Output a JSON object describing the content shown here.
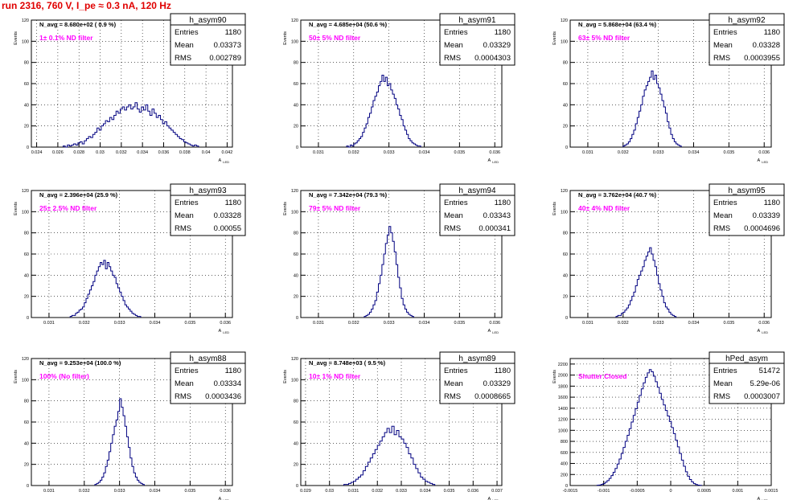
{
  "header": {
    "title": "run 2316,   760 V, I_pe ≈ 0.3 nA, 120 Hz"
  },
  "stats_labels": {
    "entries": "Entries",
    "mean": "Mean",
    "rms": "RMS"
  },
  "colors": {
    "histogram": "#000080",
    "title_red": "#e00000",
    "annotation": "#ff00ff"
  },
  "chart_data": [
    {
      "type": "bar",
      "name": "h_asym90",
      "annotation": "N_avg = 8.680e+02 ( 0.9 %)",
      "filter_label": "1± 0.1% ND filter",
      "stats": {
        "entries": "1180",
        "mean": "0.03373",
        "rms": "0.002789"
      },
      "xlabel": "A_LED",
      "ylabel": "Events",
      "xlim": [
        0.0235,
        0.0425
      ],
      "ylim": [
        0,
        120
      ],
      "xticks": [
        0.024,
        0.026,
        0.028,
        0.03,
        0.032,
        0.034,
        0.036,
        0.038,
        0.04,
        0.042
      ],
      "xtick_labels": [
        "0.024",
        "0.026",
        "0.028",
        "0.03",
        "0.032",
        "0.034",
        "0.036",
        "0.038",
        "0.04",
        "0.042"
      ],
      "yticks": [
        0,
        20,
        40,
        60,
        80,
        100,
        120
      ],
      "bin_start": 0.0265,
      "bin_width": 0.0002,
      "values": [
        1,
        0,
        2,
        1,
        2,
        3,
        2,
        4,
        5,
        3,
        6,
        8,
        10,
        9,
        12,
        14,
        18,
        16,
        20,
        22,
        25,
        24,
        28,
        26,
        30,
        34,
        32,
        36,
        38,
        35,
        38,
        40,
        36,
        38,
        42,
        36,
        33,
        38,
        35,
        40,
        34,
        30,
        36,
        32,
        28,
        30,
        26,
        22,
        24,
        20,
        18,
        16,
        14,
        12,
        10,
        8,
        7,
        5,
        4,
        3,
        2,
        1,
        2,
        1
      ]
    },
    {
      "type": "bar",
      "name": "h_asym91",
      "annotation": "N_avg = 4.685e+04 (50.6 %)",
      "filter_label": "50± 5% ND filter",
      "stats": {
        "entries": "1180",
        "mean": "0.03329",
        "rms": "0.0004303"
      },
      "xlabel": "A_LED",
      "ylabel": "Events",
      "xlim": [
        0.0305,
        0.0362
      ],
      "ylim": [
        0,
        120
      ],
      "xticks": [
        0.031,
        0.032,
        0.033,
        0.034,
        0.035,
        0.036
      ],
      "xtick_labels": [
        "0.031",
        "0.032",
        "0.033",
        "0.034",
        "0.035",
        "0.036"
      ],
      "yticks": [
        0,
        20,
        40,
        60,
        80,
        100,
        120
      ],
      "bin_start": 0.0318,
      "bin_width": 5e-05,
      "values": [
        1,
        0,
        2,
        1,
        3,
        4,
        6,
        8,
        10,
        14,
        18,
        22,
        28,
        32,
        38,
        44,
        48,
        52,
        58,
        62,
        68,
        62,
        66,
        58,
        60,
        54,
        50,
        46,
        40,
        36,
        30,
        26,
        20,
        16,
        12,
        8,
        6,
        4,
        3,
        2,
        1,
        1
      ]
    },
    {
      "type": "bar",
      "name": "h_asym92",
      "annotation": "N_avg = 5.868e+04 (63.4 %)",
      "filter_label": "63± 5% ND filter",
      "stats": {
        "entries": "1180",
        "mean": "0.03328",
        "rms": "0.0003955"
      },
      "xlabel": "A_LED",
      "ylabel": "Events",
      "xlim": [
        0.0305,
        0.0362
      ],
      "ylim": [
        0,
        120
      ],
      "xticks": [
        0.031,
        0.032,
        0.033,
        0.034,
        0.035,
        0.036
      ],
      "xtick_labels": [
        "0.031",
        "0.032",
        "0.033",
        "0.034",
        "0.035",
        "0.036"
      ],
      "yticks": [
        0,
        20,
        40,
        60,
        80,
        100,
        120
      ],
      "bin_start": 0.032,
      "bin_width": 5e-05,
      "values": [
        1,
        2,
        3,
        5,
        8,
        12,
        16,
        22,
        28,
        34,
        40,
        48,
        54,
        58,
        62,
        66,
        72,
        64,
        68,
        60,
        56,
        50,
        44,
        38,
        32,
        24,
        18,
        12,
        8,
        5,
        3,
        2,
        1
      ]
    },
    {
      "type": "bar",
      "name": "h_asym93",
      "annotation": "N_avg = 2.396e+04 (25.9 %)",
      "filter_label": "25± 2.5% ND filter",
      "stats": {
        "entries": "1180",
        "mean": "0.03328",
        "rms": "0.00055"
      },
      "xlabel": "A_LED",
      "ylabel": "Events",
      "xlim": [
        0.0305,
        0.0362
      ],
      "ylim": [
        0,
        120
      ],
      "xticks": [
        0.031,
        0.032,
        0.033,
        0.034,
        0.035,
        0.036
      ],
      "xtick_labels": [
        "0.031",
        "0.032",
        "0.033",
        "0.034",
        "0.035",
        "0.036"
      ],
      "yticks": [
        0,
        20,
        40,
        60,
        80,
        100,
        120
      ],
      "bin_start": 0.0316,
      "bin_width": 5e-05,
      "values": [
        1,
        2,
        2,
        4,
        5,
        7,
        8,
        10,
        14,
        18,
        22,
        26,
        30,
        34,
        40,
        44,
        48,
        52,
        50,
        54,
        46,
        52,
        48,
        44,
        40,
        38,
        32,
        28,
        24,
        20,
        16,
        12,
        10,
        8,
        6,
        4,
        3,
        2,
        1,
        1
      ]
    },
    {
      "type": "bar",
      "name": "h_asym94",
      "annotation": "N_avg = 7.342e+04 (79.3 %)",
      "filter_label": "79± 5% ND filter",
      "stats": {
        "entries": "1180",
        "mean": "0.03343",
        "rms": "0.000341"
      },
      "xlabel": "A_LED",
      "ylabel": "Events",
      "xlim": [
        0.0305,
        0.0362
      ],
      "ylim": [
        0,
        120
      ],
      "xticks": [
        0.031,
        0.032,
        0.033,
        0.034,
        0.035,
        0.036
      ],
      "xtick_labels": [
        "0.031",
        "0.032",
        "0.033",
        "0.034",
        "0.035",
        "0.036"
      ],
      "yticks": [
        0,
        20,
        40,
        60,
        80,
        100,
        120
      ],
      "bin_start": 0.0323,
      "bin_width": 5e-05,
      "values": [
        1,
        2,
        3,
        5,
        8,
        12,
        16,
        24,
        32,
        40,
        50,
        60,
        70,
        78,
        86,
        80,
        72,
        62,
        50,
        38,
        28,
        18,
        12,
        8,
        5,
        3,
        2,
        1
      ]
    },
    {
      "type": "bar",
      "name": "h_asym95",
      "annotation": "N_avg = 3.762e+04 (40.7 %)",
      "filter_label": "40± 4% ND filter",
      "stats": {
        "entries": "1180",
        "mean": "0.03339",
        "rms": "0.0004696"
      },
      "xlabel": "A_LED",
      "ylabel": "Events",
      "xlim": [
        0.0305,
        0.0362
      ],
      "ylim": [
        0,
        120
      ],
      "xticks": [
        0.031,
        0.032,
        0.033,
        0.034,
        0.035,
        0.036
      ],
      "xtick_labels": [
        "0.031",
        "0.032",
        "0.033",
        "0.034",
        "0.035",
        "0.036"
      ],
      "yticks": [
        0,
        20,
        40,
        60,
        80,
        100,
        120
      ],
      "bin_start": 0.0318,
      "bin_width": 5e-05,
      "values": [
        1,
        2,
        2,
        4,
        5,
        7,
        9,
        12,
        16,
        20,
        24,
        30,
        36,
        40,
        44,
        48,
        54,
        58,
        62,
        66,
        60,
        54,
        48,
        40,
        32,
        26,
        20,
        14,
        10,
        8,
        5,
        3,
        2,
        1
      ]
    },
    {
      "type": "bar",
      "name": "h_asym88",
      "annotation": "N_avg = 9.253e+04 (100.0 %)",
      "filter_label": "100% (No filter)",
      "stats": {
        "entries": "1180",
        "mean": "0.03334",
        "rms": "0.0003436"
      },
      "xlabel": "A_LED",
      "ylabel": "Events",
      "xlim": [
        0.0305,
        0.0362
      ],
      "ylim": [
        0,
        120
      ],
      "xticks": [
        0.031,
        0.032,
        0.033,
        0.034,
        0.035,
        0.036
      ],
      "xtick_labels": [
        "0.031",
        "0.032",
        "0.033",
        "0.034",
        "0.035",
        "0.036"
      ],
      "yticks": [
        0,
        20,
        40,
        60,
        80,
        100,
        120
      ],
      "bin_start": 0.0323,
      "bin_width": 5e-05,
      "values": [
        1,
        2,
        3,
        5,
        8,
        12,
        18,
        24,
        32,
        40,
        48,
        56,
        62,
        70,
        82,
        74,
        66,
        56,
        46,
        36,
        26,
        18,
        12,
        8,
        5,
        3,
        2,
        1
      ]
    },
    {
      "type": "bar",
      "name": "h_asym89",
      "annotation": "N_avg = 8.748e+03 ( 9.5 %)",
      "filter_label": "10± 1% ND filter",
      "stats": {
        "entries": "1180",
        "mean": "0.03329",
        "rms": "0.0008665"
      },
      "xlabel": "A_LED",
      "ylabel": "Events",
      "xlim": [
        0.0288,
        0.0372
      ],
      "ylim": [
        0,
        120
      ],
      "xticks": [
        0.029,
        0.03,
        0.031,
        0.032,
        0.033,
        0.034,
        0.035,
        0.036,
        0.037
      ],
      "xtick_labels": [
        "0.029",
        "0.03",
        "0.031",
        "0.032",
        "0.033",
        "0.034",
        "0.035",
        "0.036",
        "0.037"
      ],
      "yticks": [
        0,
        20,
        40,
        60,
        80,
        100,
        120
      ],
      "bin_start": 0.0306,
      "bin_width": 0.0001,
      "values": [
        1,
        1,
        2,
        3,
        4,
        6,
        8,
        10,
        14,
        18,
        22,
        26,
        30,
        34,
        38,
        42,
        46,
        50,
        54,
        50,
        56,
        48,
        52,
        46,
        44,
        40,
        36,
        30,
        26,
        20,
        16,
        12,
        8,
        6,
        4,
        3,
        2,
        1
      ]
    },
    {
      "type": "bar",
      "name": "hPed_asym",
      "annotation": "",
      "filter_label": "Shutter Closed",
      "stats": {
        "entries": "51472",
        "mean": "5.29e-06",
        "rms": "0.0003007"
      },
      "xlabel": "A_LED",
      "ylabel": "Events",
      "xlim": [
        -0.0015,
        0.0015
      ],
      "ylim": [
        0,
        2300
      ],
      "xticks": [
        -0.0015,
        -0.001,
        -0.0005,
        0,
        0.0005,
        0.001,
        0.0015
      ],
      "xtick_labels": [
        "-0.0015",
        "-0.001",
        "-0.0005",
        "0",
        "0.0005",
        "0.001",
        "0.0015"
      ],
      "yticks": [
        0,
        200,
        400,
        600,
        800,
        1000,
        1200,
        1400,
        1600,
        1800,
        2000,
        2200
      ],
      "bin_start": -0.0011,
      "bin_width": 3e-05,
      "values": [
        5,
        10,
        20,
        35,
        60,
        90,
        130,
        180,
        240,
        310,
        390,
        480,
        580,
        690,
        800,
        910,
        1030,
        1150,
        1270,
        1390,
        1510,
        1630,
        1750,
        1860,
        1960,
        2040,
        2100,
        2060,
        1980,
        1880,
        1780,
        1670,
        1560,
        1460,
        1360,
        1260,
        1160,
        1050,
        940,
        820,
        700,
        580,
        460,
        350,
        250,
        170,
        110,
        65,
        35,
        18,
        8,
        4
      ]
    }
  ]
}
